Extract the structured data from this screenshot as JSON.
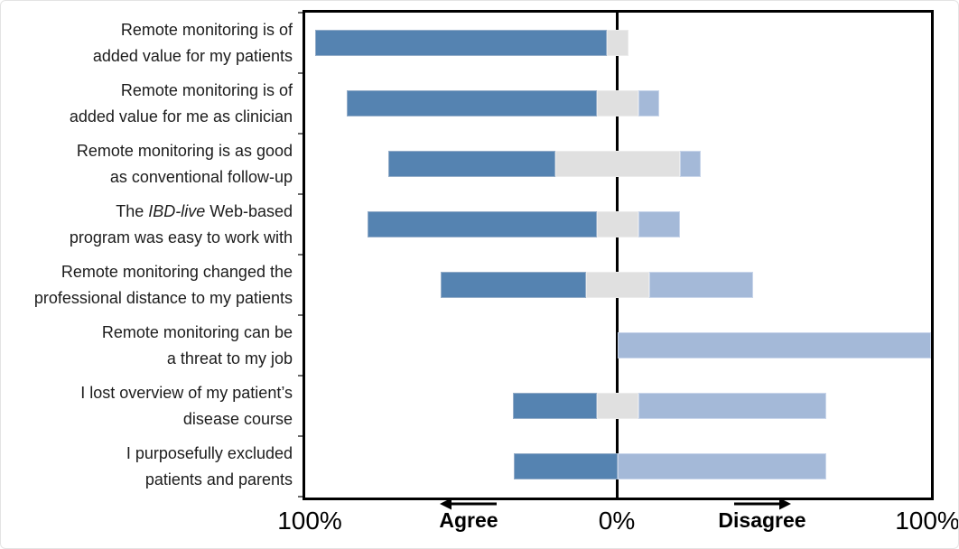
{
  "chart_data": {
    "type": "diverging_stacked_bar",
    "description_title": "",
    "xlim": [
      -100,
      100
    ],
    "axis": {
      "left_label": "100%",
      "center_label": "0%",
      "right_label": "100%",
      "agree_label": "Agree",
      "disagree_label": "Disagree"
    },
    "series_names": [
      "Agree",
      "Neutral",
      "Disagree"
    ],
    "colors": {
      "agree": "#5583b1",
      "agree_border": "#93acc8",
      "neutral": "#e0e0e0",
      "neutral_border": "#ebebeb",
      "disagree": "#a4b9d8",
      "disagree_border": "#c8d5ea",
      "axis": "#000000",
      "tick": "#6a6a6a"
    },
    "rows": [
      {
        "label": "Remote monitoring is of added value for my patients",
        "label_lines": [
          [
            {
              "t": "Remote monitoring is of"
            }
          ],
          [
            {
              "t": "added value for my patients"
            }
          ]
        ],
        "agree": 93.3,
        "neutral": 6.7,
        "disagree": 0
      },
      {
        "label": "Remote monitoring is of added value for me as clinician",
        "label_lines": [
          [
            {
              "t": "Remote monitoring is of"
            }
          ],
          [
            {
              "t": "added value for me as clinician"
            }
          ]
        ],
        "agree": 80,
        "neutral": 13.3,
        "disagree": 6.7
      },
      {
        "label": "Remote monitoring is as good as conventional follow-up",
        "label_lines": [
          [
            {
              "t": "Remote monitoring is as good"
            }
          ],
          [
            {
              "t": "as conventional follow-up"
            }
          ]
        ],
        "agree": 53.3,
        "neutral": 40,
        "disagree": 6.7
      },
      {
        "label": "The IBD-live Web-based program was easy to work with",
        "label_lines": [
          [
            {
              "t": "The "
            },
            {
              "t": "IBD-live",
              "i": true
            },
            {
              "t": " Web-based"
            }
          ],
          [
            {
              "t": "program was easy to work with"
            }
          ]
        ],
        "agree": 73.3,
        "neutral": 13.3,
        "disagree": 13.3
      },
      {
        "label": "Remote monitoring changed the professional distance to my patients",
        "label_lines": [
          [
            {
              "t": "Remote monitoring changed the"
            }
          ],
          [
            {
              "t": "professional distance to my patients"
            }
          ]
        ],
        "agree": 46.7,
        "neutral": 20,
        "disagree": 33.3
      },
      {
        "label": "Remote monitoring can be a threat to my job",
        "label_lines": [
          [
            {
              "t": "Remote monitoring can be"
            }
          ],
          [
            {
              "t": "a threat to my job"
            }
          ]
        ],
        "agree": 0,
        "neutral": 0,
        "disagree": 100
      },
      {
        "label": "I lost overview of my patient’s disease course",
        "label_lines": [
          [
            {
              "t": "I lost overview of my patient’s"
            }
          ],
          [
            {
              "t": "disease course"
            }
          ]
        ],
        "agree": 26.7,
        "neutral": 13.3,
        "disagree": 60
      },
      {
        "label": "I purposefully excluded patients and parents",
        "label_lines": [
          [
            {
              "t": "I purposefully excluded"
            }
          ],
          [
            {
              "t": "patients and parents"
            }
          ]
        ],
        "agree": 33.3,
        "neutral": 0,
        "disagree": 66.7
      }
    ]
  }
}
